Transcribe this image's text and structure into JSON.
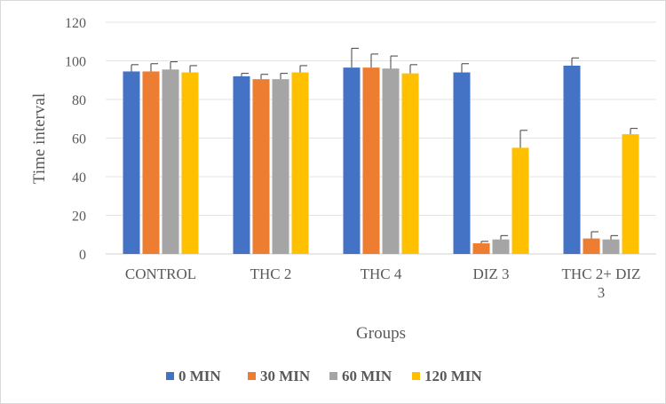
{
  "chart_data": {
    "type": "bar",
    "title": "",
    "xlabel": "Groups",
    "ylabel": "Time interval",
    "ylim": [
      0,
      120
    ],
    "yticks": [
      "0",
      "20",
      "40",
      "60",
      "80",
      "100",
      "120"
    ],
    "grid": true,
    "legend_position": "bottom",
    "categories": [
      [
        "CONTROL"
      ],
      [
        "THC 2"
      ],
      [
        "THC 4"
      ],
      [
        "DIZ 3"
      ],
      [
        "THC 2+ DIZ",
        "3"
      ]
    ],
    "series": [
      {
        "name": "0 MIN",
        "color": "#4472c4",
        "values": [
          94.5,
          92,
          96.5,
          94,
          97.5
        ],
        "errors": [
          3.5,
          1.5,
          10,
          4.5,
          4
        ]
      },
      {
        "name": "30 MIN",
        "color": "#ed7d31",
        "values": [
          94.5,
          90.5,
          96.5,
          5.5,
          8
        ],
        "errors": [
          4,
          2.5,
          7,
          1,
          3.5
        ]
      },
      {
        "name": "60 MIN",
        "color": "#a5a5a5",
        "values": [
          95.5,
          90.5,
          96,
          7.5,
          7.5
        ],
        "errors": [
          4,
          3,
          6.5,
          2,
          2
        ]
      },
      {
        "name": "120 MIN",
        "color": "#ffc000",
        "values": [
          94,
          94,
          93.5,
          55,
          62
        ],
        "errors": [
          3.5,
          3.5,
          4.5,
          9,
          3
        ]
      }
    ]
  }
}
